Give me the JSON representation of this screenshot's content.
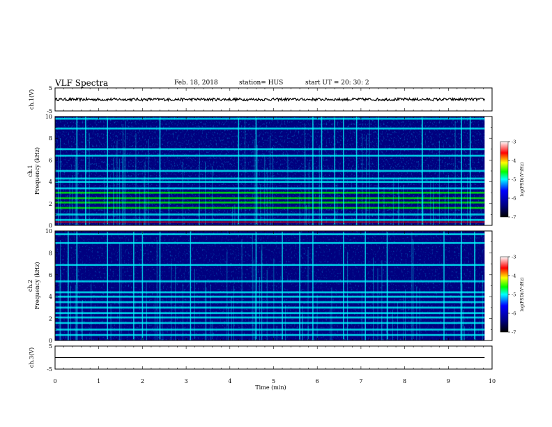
{
  "header": {
    "title": "VLF Spectra",
    "date": "Feb. 18, 2018",
    "station": "station= HUS",
    "start": "start  UT =   20: 30: 2"
  },
  "chart_data": [
    {
      "type": "line",
      "panel": "ch1-waveform",
      "ylabel": "ch.1(V)",
      "ylim": [
        -5,
        5
      ],
      "yticks": [
        "5",
        "-5"
      ],
      "x_range_min": [
        0,
        10
      ],
      "data_extent_min": [
        0,
        9.83
      ],
      "trace_level_v": 0,
      "trace_amplitude_v": 0.6
    },
    {
      "type": "heatmap",
      "panel": "ch1-spectrogram",
      "ylabel": "ch.1\nFrequency (kHz)",
      "ylim": [
        0,
        10
      ],
      "yticks": [
        "0",
        "2",
        "4",
        "6",
        "8",
        "10"
      ],
      "x_range_min": [
        0,
        10
      ],
      "data_extent_min": [
        0,
        9.83
      ],
      "bright_bands_khz": [
        0.5,
        1.0,
        1.6,
        2.1,
        2.5,
        3.0,
        3.4,
        4.0,
        4.3,
        5.0,
        6.4,
        7.0,
        8.9,
        9.8
      ],
      "burst_times_min": [
        0.5,
        0.7,
        1.2,
        2.4,
        4.2,
        4.6,
        5.9,
        6.1,
        6.4,
        6.6,
        6.9,
        7.4,
        8.4,
        9.3,
        9.5
      ],
      "colorbar": {
        "label": "log(PSD)(V²/Hz)",
        "range": [
          -7,
          -3
        ],
        "ticks": [
          "-3",
          "-4",
          "-5",
          "-6",
          "-7"
        ]
      }
    },
    {
      "type": "heatmap",
      "panel": "ch2-spectrogram",
      "ylabel": "ch.2\nFrequency (kHz)",
      "ylim": [
        0,
        10
      ],
      "yticks": [
        "0",
        "2",
        "4",
        "6",
        "8",
        "10"
      ],
      "x_range_min": [
        0,
        10
      ],
      "data_extent_min": [
        0,
        9.83
      ],
      "bright_bands_khz": [
        0.5,
        1.0,
        1.6,
        2.1,
        2.5,
        3.0,
        3.5,
        4.0,
        4.4,
        5.4,
        6.9,
        8.9,
        9.7
      ],
      "burst_times_min": [
        0.3,
        0.5,
        1.2,
        1.8,
        2.0,
        2.4,
        3.1,
        4.6,
        5.2,
        5.6,
        5.9,
        6.6,
        7.1,
        7.6,
        8.9,
        9.3,
        9.6
      ],
      "colorbar": {
        "label": "log(PSD)(V²/Hz)",
        "range": [
          -7,
          -3
        ],
        "ticks": [
          "-3",
          "-4",
          "-5",
          "-6",
          "-7"
        ]
      }
    },
    {
      "type": "line",
      "panel": "ch3-waveform",
      "ylabel": "ch.3(V)",
      "ylim": [
        -5,
        5
      ],
      "yticks": [
        "5",
        "-5"
      ],
      "x_range_min": [
        0,
        10
      ],
      "data_extent_min": [
        0,
        9.83
      ],
      "trace_level_v": 0,
      "trace_amplitude_v": 0
    }
  ],
  "xaxis": {
    "label": "Time  (min)",
    "range": [
      0,
      10
    ],
    "ticks": [
      "0",
      "1",
      "2",
      "3",
      "4",
      "5",
      "6",
      "7",
      "8",
      "9",
      "10"
    ]
  },
  "colors": {
    "colormap": [
      "#000000",
      "#00007f",
      "#0000ff",
      "#00ffff",
      "#00ff00",
      "#ffff00",
      "#ff0000",
      "#ffffff"
    ]
  }
}
